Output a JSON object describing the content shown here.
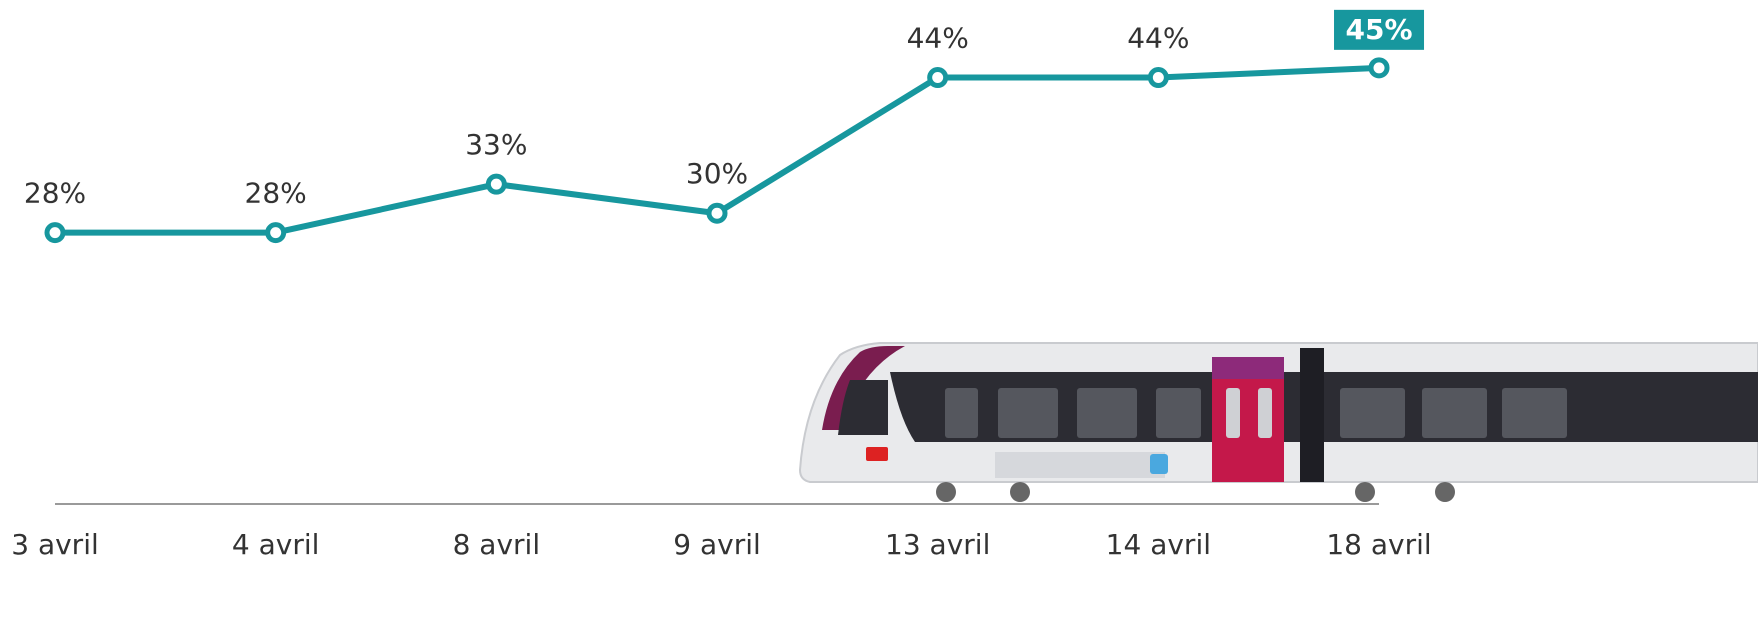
{
  "chart_data": {
    "type": "line",
    "categories": [
      "3 avril",
      "4 avril",
      "8 avril",
      "9 avril",
      "13 avril",
      "14 avril",
      "18 avril"
    ],
    "series": [
      {
        "color": "#17979e",
        "values": [
          28,
          28,
          33,
          30,
          44,
          44,
          45
        ],
        "value_labels": [
          "28%",
          "28%",
          "33%",
          "30%",
          "44%",
          "44%",
          "45%"
        ]
      }
    ],
    "ylim": [
      0,
      52
    ]
  }
}
